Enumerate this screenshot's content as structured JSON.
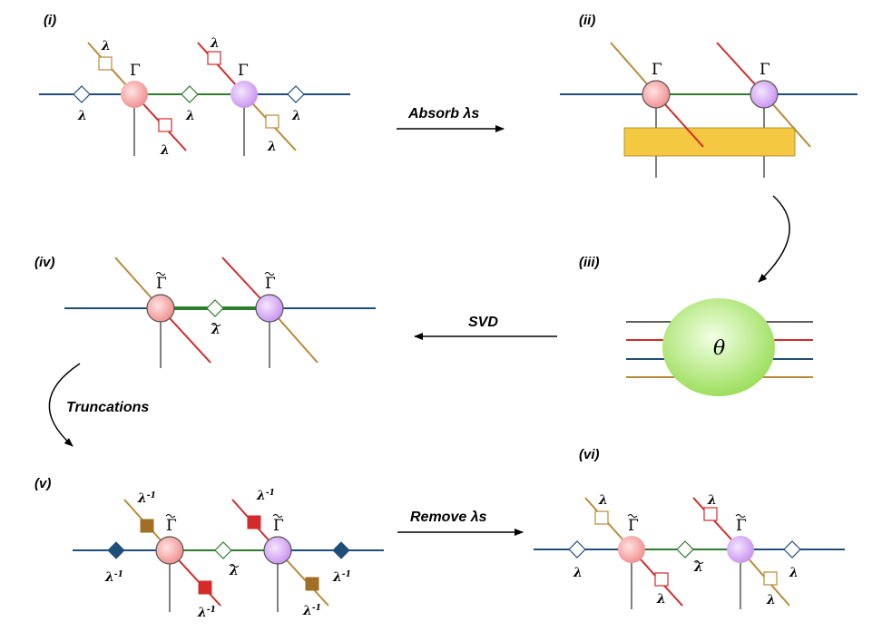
{
  "panels": {
    "i": "(i)",
    "ii": "(ii)",
    "iii": "(iii)",
    "iv": "(iv)",
    "v": "(v)",
    "vi": "(vi)"
  },
  "steps": {
    "absorb": "Absorb λs",
    "svd": "SVD",
    "truncations": "Truncations",
    "remove": "Remove λs"
  },
  "symbols": {
    "gamma": "Γ",
    "lambda": "λ",
    "lambda_inv": "λ",
    "inv_exp": "-1",
    "theta": "θ"
  },
  "colors": {
    "horizontal_bond": "#1f4e7a",
    "central_bond": "#2e7d2e",
    "left_physical": "#b88a3a",
    "right_physical": "#d42a2a",
    "gamma_left_fill": "#f4a3a3",
    "gamma_right_fill": "#d6a8f0",
    "theta_fill": "#a8e26a",
    "contraction_box": "#f5c842",
    "filled_blue": "#1f4e7a",
    "filled_brown": "#a06e24",
    "filled_red": "#d42a2a"
  }
}
